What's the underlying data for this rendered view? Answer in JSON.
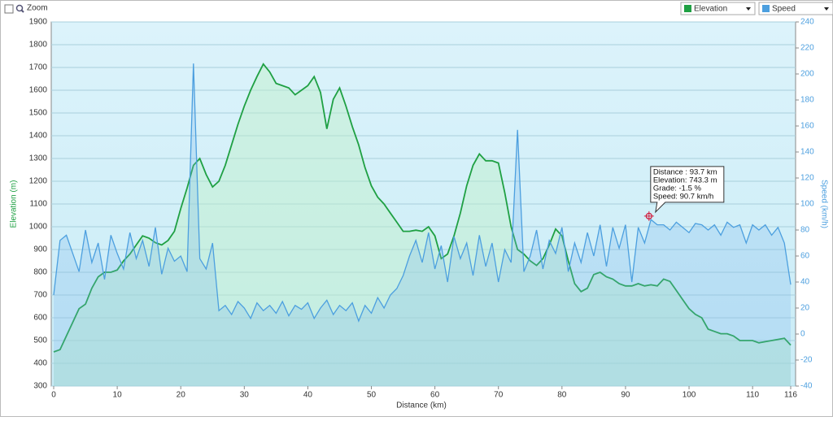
{
  "toolbar": {
    "zoom": "Zoom"
  },
  "chart_data": {
    "type": "line",
    "x_label": "Distance  (km)",
    "y_label": "Elevation (m)",
    "y2_label": "Speed (km/h)",
    "x": [
      0,
      1,
      2,
      3,
      4,
      5,
      6,
      7,
      8,
      9,
      10,
      11,
      12,
      13,
      14,
      15,
      16,
      17,
      18,
      19,
      20,
      21,
      22,
      23,
      24,
      25,
      26,
      27,
      28,
      29,
      30,
      31,
      32,
      33,
      34,
      35,
      36,
      37,
      38,
      39,
      40,
      41,
      42,
      43,
      44,
      45,
      46,
      47,
      48,
      49,
      50,
      51,
      52,
      53,
      54,
      55,
      56,
      57,
      58,
      59,
      60,
      61,
      62,
      63,
      64,
      65,
      66,
      67,
      68,
      69,
      70,
      71,
      72,
      73,
      74,
      75,
      76,
      77,
      78,
      79,
      80,
      81,
      82,
      83,
      84,
      85,
      86,
      87,
      88,
      89,
      90,
      91,
      92,
      93,
      94,
      95,
      96,
      97,
      98,
      99,
      100,
      101,
      102,
      103,
      104,
      105,
      106,
      107,
      108,
      109,
      110,
      111,
      112,
      113,
      114,
      115,
      116
    ],
    "series": [
      {
        "name": "Elevation",
        "color": "#1fa043",
        "fill": "rgba(190,240,200,0.45)",
        "values": [
          450,
          460,
          520,
          580,
          640,
          660,
          730,
          780,
          800,
          800,
          810,
          850,
          880,
          920,
          960,
          950,
          930,
          920,
          940,
          980,
          1080,
          1170,
          1270,
          1300,
          1230,
          1175,
          1200,
          1270,
          1360,
          1450,
          1530,
          1600,
          1660,
          1715,
          1680,
          1630,
          1620,
          1610,
          1580,
          1600,
          1620,
          1660,
          1590,
          1430,
          1560,
          1610,
          1530,
          1440,
          1360,
          1260,
          1180,
          1130,
          1100,
          1060,
          1020,
          980,
          980,
          985,
          980,
          1000,
          960,
          860,
          880,
          960,
          1060,
          1180,
          1270,
          1320,
          1290,
          1290,
          1280,
          1150,
          1000,
          900,
          880,
          850,
          830,
          860,
          920,
          990,
          960,
          850,
          750,
          715,
          730,
          790,
          800,
          780,
          770,
          750,
          740,
          740,
          750,
          740,
          745,
          740,
          770,
          760,
          720,
          680,
          640,
          615,
          600,
          550,
          540,
          530,
          530,
          520,
          500,
          500,
          500,
          490,
          495,
          500,
          505,
          510,
          480
        ]
      },
      {
        "name": "Speed",
        "color": "#4c9fdf",
        "fill": "rgba(120,180,235,0.25)",
        "axis": "y2",
        "values": [
          30,
          72,
          76,
          62,
          48,
          80,
          55,
          70,
          42,
          76,
          62,
          50,
          78,
          58,
          72,
          52,
          82,
          46,
          66,
          56,
          60,
          48,
          208,
          58,
          50,
          70,
          18,
          22,
          15,
          25,
          20,
          12,
          24,
          18,
          22,
          16,
          25,
          14,
          22,
          19,
          24,
          12,
          20,
          26,
          15,
          22,
          18,
          24,
          10,
          22,
          16,
          28,
          20,
          30,
          35,
          45,
          60,
          72,
          55,
          78,
          50,
          68,
          40,
          75,
          58,
          70,
          45,
          76,
          52,
          70,
          40,
          65,
          55,
          157,
          48,
          60,
          80,
          50,
          72,
          62,
          82,
          48,
          70,
          55,
          78,
          60,
          84,
          52,
          82,
          66,
          84,
          40,
          82,
          70,
          88,
          84,
          84,
          80,
          86,
          82,
          78,
          85,
          84,
          80,
          84,
          76,
          86,
          82,
          84,
          70,
          84,
          80,
          84,
          76,
          82,
          70,
          38
        ]
      }
    ],
    "xlim": [
      0,
      116
    ],
    "xticks": [
      0,
      10,
      20,
      30,
      40,
      50,
      60,
      70,
      80,
      90,
      100,
      110,
      116
    ],
    "ylim": [
      300,
      1900
    ],
    "yticks": [
      300,
      400,
      500,
      600,
      700,
      800,
      900,
      1000,
      1100,
      1200,
      1300,
      1400,
      1500,
      1600,
      1700,
      1800,
      1900
    ],
    "y2lim": [
      -40,
      240
    ],
    "y2ticks": [
      -40,
      -20,
      0,
      20,
      40,
      60,
      80,
      100,
      120,
      140,
      160,
      180,
      200,
      220,
      240
    ],
    "grid": true,
    "highlight": {
      "x": 93.7,
      "y": 90.7
    },
    "tooltip": [
      "Distance : 93.7 km",
      "Elevation: 743.3 m",
      "Grade: -1.5 %",
      "Speed: 90.7 km/h"
    ]
  }
}
